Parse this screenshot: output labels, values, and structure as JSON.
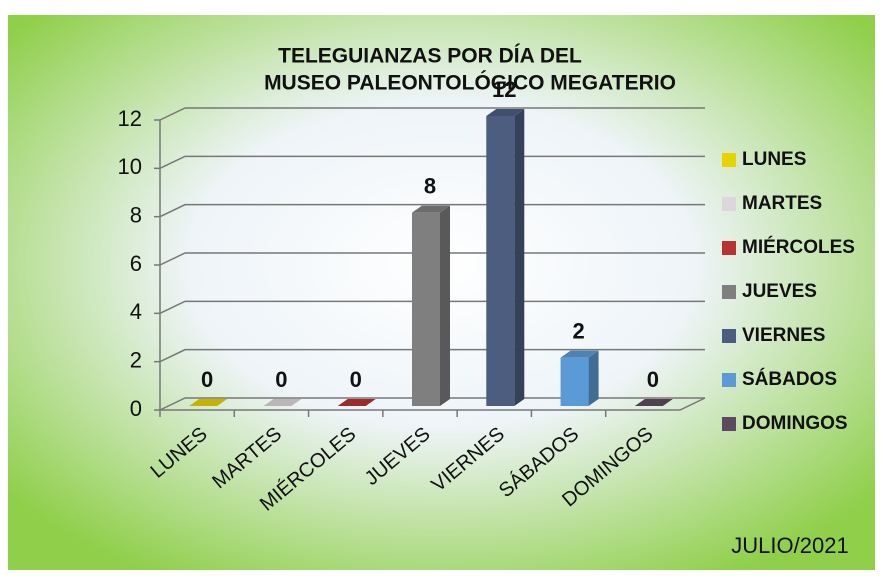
{
  "chart_data": {
    "type": "bar",
    "title": [
      "TELEGUIANZAS POR DÍA DEL",
      "MUSEO PALEONTOLÓGICO MEGATERIO"
    ],
    "categories": [
      "LUNES",
      "MARTES",
      "MIÉRCOLES",
      "JUEVES",
      "VIERNES",
      "SÁBADOS",
      "DOMINGOS"
    ],
    "values": [
      0,
      0,
      0,
      8,
      12,
      2,
      0
    ],
    "colors": [
      "#e6d300",
      "#ddd6dc",
      "#b83232",
      "#7f7f7f",
      "#4c5d80",
      "#5b9bd5",
      "#5c4b5e"
    ],
    "ylim": [
      0,
      12
    ],
    "yticks": [
      0,
      2,
      4,
      6,
      8,
      10,
      12
    ],
    "grid": true,
    "legend": "right",
    "annotation": "JULIO/2021"
  }
}
